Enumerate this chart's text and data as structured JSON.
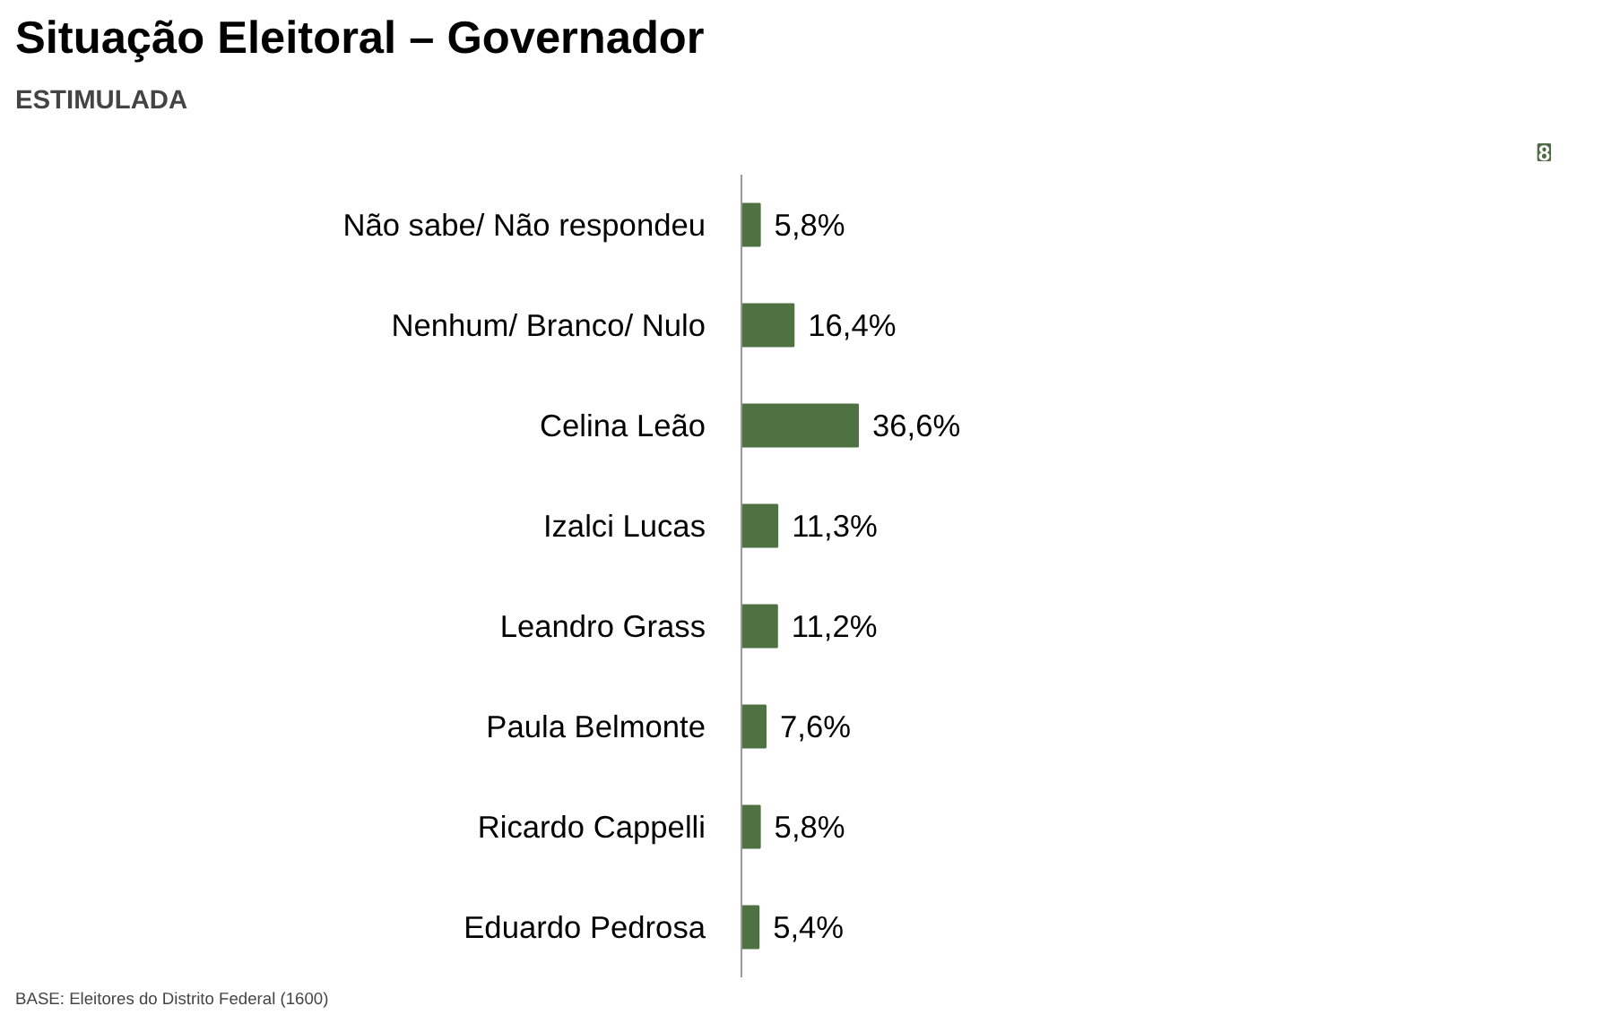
{
  "chart_data": {
    "type": "bar",
    "orientation": "horizontal",
    "title": "Situação Eleitoral – Governador",
    "subtitle": "ESTIMULADA",
    "categories": [
      "Não sabe/ Não respondeu",
      "Nenhum/ Branco/ Nulo",
      "Celina Leão",
      "Izalci Lucas",
      "Leandro Grass",
      "Paula Belmonte",
      "Ricardo Cappelli",
      "Eduardo Pedrosa"
    ],
    "values": [
      5.8,
      16.4,
      36.6,
      11.3,
      11.2,
      7.6,
      5.8,
      5.4
    ],
    "value_labels": [
      "5,8%",
      "16,4%",
      "36,6%",
      "11,3%",
      "11,2%",
      "7,6%",
      "5,8%",
      "5,4%"
    ],
    "color": "#4f7242",
    "annotations": [
      "8",
      "BASE: Eleitores do Distrito Federal (1600)"
    ]
  }
}
